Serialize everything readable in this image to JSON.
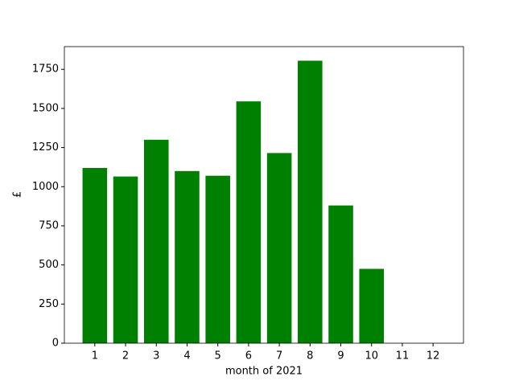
{
  "chart_data": {
    "type": "bar",
    "x_label": "month of 2021",
    "y_label": "£",
    "x": [
      1,
      2,
      3,
      4,
      5,
      6,
      7,
      8,
      9,
      10,
      11,
      12
    ],
    "values": [
      1120,
      1065,
      1300,
      1100,
      1070,
      1545,
      1215,
      1805,
      880,
      475,
      0,
      0
    ],
    "color": "#008000",
    "xlim": [
      0.01,
      12.99
    ],
    "xticks": [
      1,
      2,
      3,
      4,
      5,
      6,
      7,
      8,
      9,
      10,
      11,
      12
    ],
    "ylim": [
      0,
      1895
    ],
    "yticks": [
      0,
      250,
      500,
      750,
      1000,
      1250,
      1500,
      1750
    ]
  }
}
